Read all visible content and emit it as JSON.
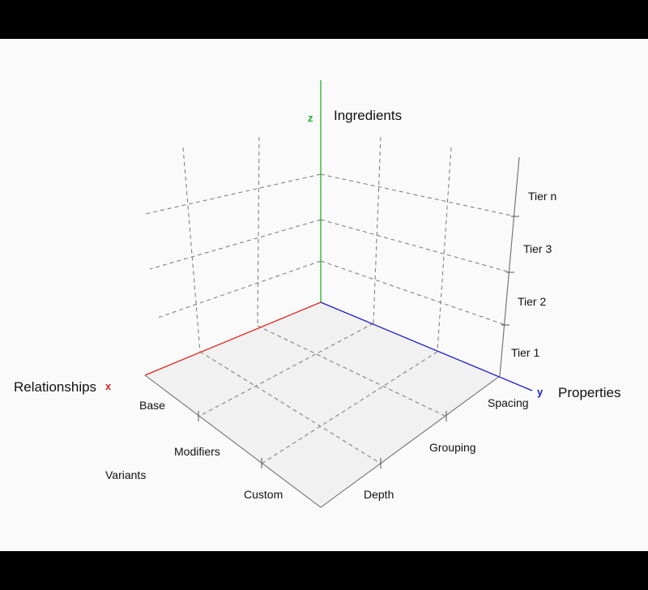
{
  "diagram": {
    "axes": {
      "x": {
        "letter": "x",
        "title": "Relationships",
        "color": "#e0241d",
        "ticks": [
          "Base",
          "Modifiers",
          "Custom"
        ],
        "extra_label": "Variants"
      },
      "y": {
        "letter": "y",
        "title": "Properties",
        "color": "#1a1ac8",
        "ticks": [
          "Spacing",
          "Grouping",
          "Depth"
        ]
      },
      "z": {
        "letter": "z",
        "title": "Ingredients",
        "color": "#22b02a"
      },
      "tier_axis": {
        "ticks": [
          "Tier 1",
          "Tier 2",
          "Tier 3",
          "Tier n"
        ]
      }
    },
    "colors": {
      "floor": "#f1f1f1",
      "grid": "#777777",
      "background": "#fafafa"
    }
  }
}
